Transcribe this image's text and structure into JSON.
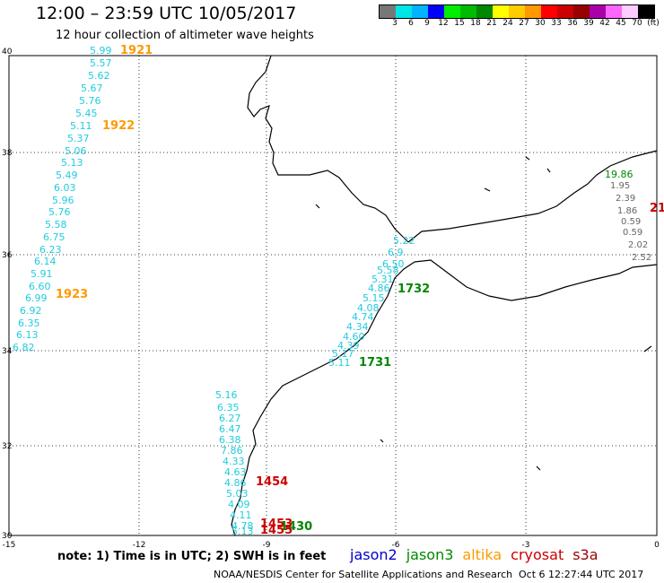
{
  "header": {
    "title": "12:00 – 23:59 UTC 10/05/2017",
    "subtitle": "12 hour collection of altimeter wave heights"
  },
  "colorbar": {
    "colors": [
      "#777777",
      "#00e5e5",
      "#00b4ff",
      "#0000ff",
      "#00ee00",
      "#00bb00",
      "#008800",
      "#ffff00",
      "#ffcc00",
      "#ff9900",
      "#ff0000",
      "#cc0000",
      "#990000",
      "#aa00aa",
      "#ff66ff",
      "#ffccff",
      "#000000"
    ],
    "labels": [
      "3",
      "6",
      "9",
      "12",
      "15",
      "18",
      "21",
      "24",
      "27",
      "30",
      "33",
      "36",
      "39",
      "42",
      "45",
      "70",
      "(ft)"
    ]
  },
  "axes": {
    "x_ticks": [
      "-15",
      "-12",
      "-9",
      "-6",
      "-3",
      "0"
    ],
    "y_ticks": [
      "40",
      "38",
      "36",
      "34",
      "32",
      "30"
    ]
  },
  "tracks": {
    "cyan_west": [
      "5.99",
      "5.57",
      "5.62",
      "5.67",
      "5.76",
      "5.45",
      "5.11",
      "5.37",
      "5.06",
      "5.13",
      "5.49",
      "6.03",
      "5.96",
      "5.76",
      "5.58",
      "6.75",
      "6.23",
      "6.14",
      "5.91",
      "6.60",
      "6.99",
      "6.92",
      "6.35",
      "6.13",
      "6.82"
    ],
    "cyan_gibraltar": [
      "5.22",
      "6.9",
      "6.50",
      "5.58",
      "5.31",
      "4.86",
      "5.15",
      "4.08",
      "4.74",
      "4.34",
      "4.60",
      "4.39",
      "5.17",
      "5.11"
    ],
    "cyan_south": [
      "5.16",
      "6.35",
      "6.27",
      "6.47",
      "6.38",
      "7.86",
      "4.33",
      "4.63",
      "4.86",
      "5.03",
      "4.09",
      "4.11",
      "4.78",
      "5.13"
    ],
    "gray_med": [
      "1.95",
      "2.39",
      "1.86",
      "0.59",
      "0.59",
      "2.02",
      "2.52"
    ],
    "green_med": "19.86"
  },
  "time_labels": {
    "altika": [
      "1921",
      "1922",
      "1923"
    ],
    "jason3": [
      "1732",
      "1731",
      "1430"
    ],
    "cryosat": [
      "1454",
      "1453",
      "1455",
      "21"
    ]
  },
  "footer": {
    "note": "note: 1) Time is in UTC; 2) SWH is in feet",
    "legend": [
      {
        "label": "jason2",
        "color": "#0000cc"
      },
      {
        "label": "jason3",
        "color": "#008800"
      },
      {
        "label": "altika",
        "color": "#ff9900"
      },
      {
        "label": "cryosat",
        "color": "#cc0000"
      },
      {
        "label": "s3a",
        "color": "#990000"
      }
    ],
    "credit": "NOAA/NESDIS Center for Satellite Applications and Research",
    "timestamp": "Oct  6 12:27:44 UTC 2017"
  }
}
